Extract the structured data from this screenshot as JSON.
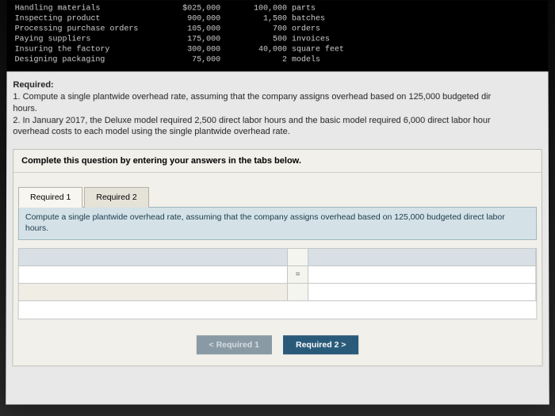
{
  "darkTable": {
    "rows": [
      {
        "label": "Handling materials",
        "cost": "$025,000",
        "qty": "100,000",
        "unit": "parts"
      },
      {
        "label": "Inspecting product",
        "cost": "900,000",
        "qty": "1,500",
        "unit": "batches"
      },
      {
        "label": "Processing purchase orders",
        "cost": "105,000",
        "qty": "700",
        "unit": "orders"
      },
      {
        "label": "Paying suppliers",
        "cost": "175,000",
        "qty": "500",
        "unit": "invoices"
      },
      {
        "label": "Insuring the factory",
        "cost": "300,000",
        "qty": "40,000",
        "unit": "square feet"
      },
      {
        "label": "Designing packaging",
        "cost": "75,000",
        "qty": "2",
        "unit": "models"
      }
    ]
  },
  "required": {
    "heading": "Required:",
    "item1": "1. Compute a single plantwide overhead rate, assuming that the company assigns overhead based on 125,000 budgeted dir",
    "item1b": "hours.",
    "item2": "2. In January 2017, the Deluxe model required 2,500 direct labor hours and the basic model required 6,000 direct labor hour",
    "item2b": "overhead costs to each model using the single plantwide overhead rate."
  },
  "panel": {
    "header": "Complete this question by entering your answers in the tabs below.",
    "tab1": "Required 1",
    "tab2": "Required 2",
    "tabContent": "Compute a single plantwide overhead rate, assuming that the company assigns overhead based on 125,000 budgeted direct labor hours.",
    "eq": "="
  },
  "nav": {
    "prev": "<  Required 1",
    "next": "Required 2  >"
  },
  "colors": {
    "darkBg": "#000000",
    "panelBg": "#f2f0ea",
    "tabContentBg": "#d4e2e8",
    "nextBtn": "#2a5a7a"
  }
}
